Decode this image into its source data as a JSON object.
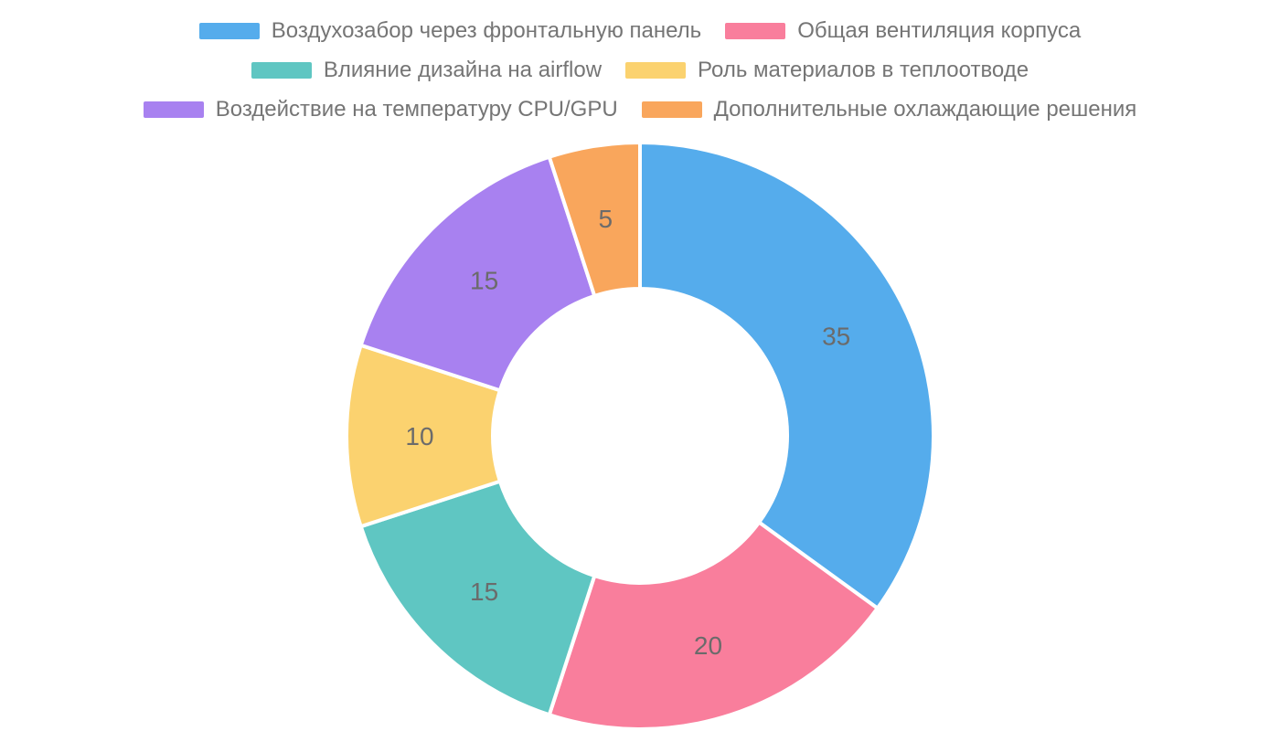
{
  "chart_data": {
    "type": "pie",
    "subtype": "donut",
    "title": "",
    "start_angle_deg": 0,
    "direction": "clockwise",
    "inner_radius_ratio": 0.5,
    "total": 100,
    "series": [
      {
        "label": "Воздухозабор через фронтальную панель",
        "value": 35,
        "color": "#55ACEC"
      },
      {
        "label": "Общая вентиляция корпуса",
        "value": 20,
        "color": "#F97E9C"
      },
      {
        "label": "Влияние дизайна на airflow",
        "value": 15,
        "color": "#5FC6C2"
      },
      {
        "label": "Роль материалов в теплоотводе",
        "value": 10,
        "color": "#FBD26F"
      },
      {
        "label": "Воздействие на температуру CPU/GPU",
        "value": 15,
        "color": "#A881F0"
      },
      {
        "label": "Дополнительные охлаждающие решения",
        "value": 5,
        "color": "#F9A65C"
      }
    ],
    "value_label_color": "#6B6B6B",
    "slice_border_color": "#FFFFFF",
    "legend": {
      "position": "top",
      "text_color": "#757575",
      "rows": [
        [
          0,
          1
        ],
        [
          2,
          3
        ],
        [
          4,
          5
        ]
      ]
    }
  }
}
